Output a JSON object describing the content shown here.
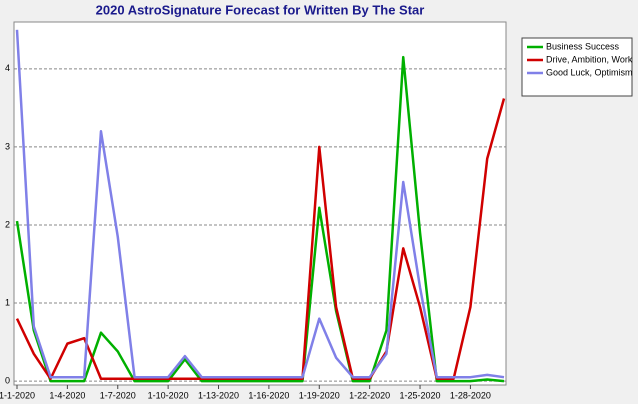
{
  "chart_data": {
    "type": "line",
    "title": "2020 AstroSignature Forecast for Written By The Star",
    "categories": [
      "1-1-2020",
      null,
      null,
      "1-4-2020",
      null,
      null,
      "1-7-2020",
      null,
      null,
      "1-10-2020",
      null,
      null,
      "1-13-2020",
      null,
      null,
      "1-16-2020",
      null,
      null,
      "1-19-2020",
      null,
      null,
      "1-22-2020",
      null,
      null,
      "1-25-2020",
      null,
      null,
      "1-28-2020",
      null,
      null
    ],
    "series": [
      {
        "name": "Business Success",
        "color": "#00b000",
        "values": [
          2.05,
          0.65,
          0,
          0,
          0,
          0.62,
          0.38,
          0,
          0,
          0,
          0.28,
          0,
          0,
          0,
          0,
          0,
          0,
          0,
          2.22,
          0.9,
          0,
          0,
          0.65,
          4.15,
          1.9,
          0,
          0,
          0,
          0.02,
          0
        ]
      },
      {
        "name": "Drive, Ambition, Work",
        "color": "#d00000",
        "values": [
          0.8,
          0.35,
          0.03,
          0.48,
          0.55,
          0.03,
          0.03,
          0.03,
          0.03,
          0.03,
          0.03,
          0.03,
          0.03,
          0.03,
          0.03,
          0.03,
          0.03,
          0.03,
          3.0,
          0.95,
          0.03,
          0.03,
          0.38,
          1.7,
          0.95,
          0.03,
          0.03,
          0.95,
          2.85,
          3.62
        ]
      },
      {
        "name": "Good Luck, Optimism",
        "color": "#8080e8",
        "values": [
          4.5,
          0.7,
          0.05,
          0.05,
          0.05,
          3.2,
          1.85,
          0.05,
          0.05,
          0.05,
          0.32,
          0.05,
          0.05,
          0.05,
          0.05,
          0.05,
          0.05,
          0.05,
          0.8,
          0.3,
          0.05,
          0.05,
          0.35,
          2.55,
          1.2,
          0.05,
          0.05,
          0.05,
          0.08,
          0.05
        ]
      }
    ],
    "ylim": [
      -0.05,
      4.6
    ],
    "yticks": [
      0,
      1,
      2,
      3,
      4
    ],
    "grid": true
  }
}
